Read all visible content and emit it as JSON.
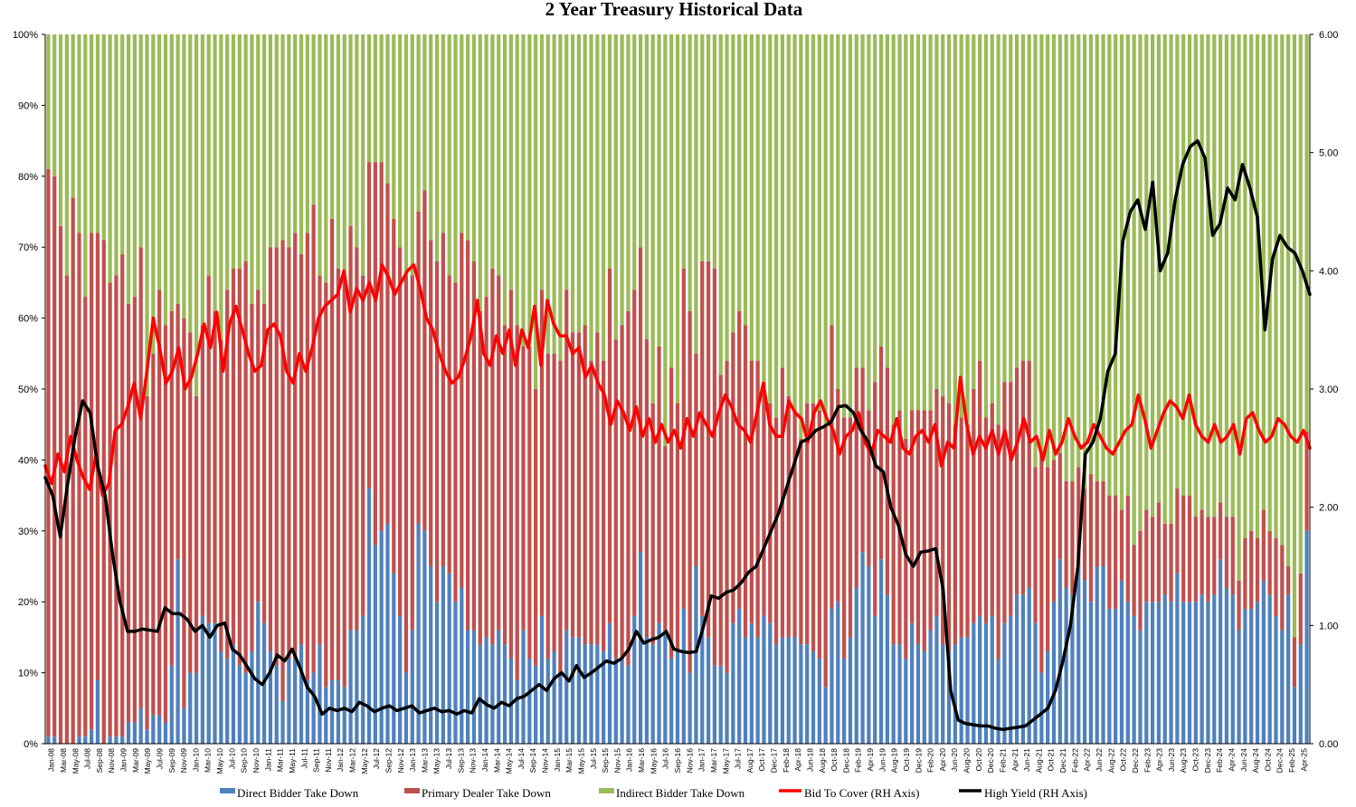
{
  "chart_data": {
    "type": "bar",
    "title": "2 Year Treasury  Historical Data",
    "y_left": {
      "min": 0,
      "max": 100,
      "ticks": [
        "0%",
        "10%",
        "20%",
        "30%",
        "40%",
        "50%",
        "60%",
        "70%",
        "80%",
        "90%",
        "100%"
      ]
    },
    "y_right": {
      "min": 0,
      "max": 6,
      "ticks": [
        "0.00",
        "1.00",
        "2.00",
        "3.00",
        "4.00",
        "5.00",
        "6.00"
      ]
    },
    "x_tick_labels": [
      "Jan-08",
      "Mar-08",
      "May-08",
      "Jul-08",
      "Sep-08",
      "Nov-08",
      "Jan-09",
      "Mar-09",
      "May-09",
      "Jul-09",
      "Sep-09",
      "Nov-09",
      "Jan-10",
      "Mar-10",
      "May-10",
      "Jul-10",
      "Sep-10",
      "Nov-10",
      "Jan-11",
      "Mar-11",
      "May-11",
      "Jul-11",
      "Sep-11",
      "Nov-11",
      "Jan-12",
      "Mar-12",
      "May-12",
      "Jul-12",
      "Sep-12",
      "Nov-12",
      "Jan-13",
      "Mar-13",
      "May-13",
      "Jul-13",
      "Sep-13",
      "Nov-13",
      "Jan-14",
      "Mar-14",
      "May-14",
      "Jul-14",
      "Sep-14",
      "Nov-14",
      "Jan-15",
      "Mar-15",
      "May-15",
      "Jul-15",
      "Sep-15",
      "Nov-15",
      "Jan-16",
      "Mar-16",
      "May-16",
      "Jul-16",
      "Sep-16",
      "Nov-16",
      "Jan-17",
      "Mar-17",
      "May-17",
      "Jul-17",
      "Aug-17",
      "Oct-17",
      "Dec-17",
      "Feb-18",
      "Apr-18",
      "Jun-18",
      "Aug-18",
      "Oct-18",
      "Dec-18",
      "Feb-19",
      "Apr-19",
      "Jun-19",
      "Aug-19",
      "Oct-19",
      "Dec-19",
      "Feb-20",
      "Apr-20",
      "Jun-20",
      "Aug-20",
      "Oct-20",
      "Dec-20",
      "Feb-21",
      "Apr-21",
      "Jun-21",
      "Aug-21",
      "Oct-21",
      "Dec-21",
      "Feb-22",
      "Apr-22",
      "Jun-22",
      "Aug-22",
      "Oct-22",
      "Dec-22",
      "Feb-23",
      "Apr-23",
      "Jun-23",
      "Aug-23",
      "Oct-23",
      "Dec-23",
      "Feb-24",
      "Apr-24",
      "Jun-24",
      "Aug-24",
      "Oct-24",
      "Dec-24",
      "Feb-25",
      "Apr-25"
    ],
    "series": [
      {
        "name": "Direct Bidder Take Down",
        "kind": "stacked-bar",
        "color": "#4f81bd",
        "values": [
          1,
          1,
          0,
          0,
          0,
          1,
          1,
          2,
          9,
          0,
          1,
          1,
          1,
          3,
          3,
          5,
          2,
          4,
          4,
          3,
          11,
          26,
          5,
          10,
          10,
          18,
          17,
          17,
          13,
          12,
          14,
          11,
          10,
          13,
          20,
          17,
          13,
          11,
          6,
          12,
          12,
          14,
          9,
          10,
          14,
          8,
          9,
          9,
          8,
          16,
          16,
          18,
          36,
          28,
          30,
          31,
          24,
          18,
          10,
          16,
          31,
          30,
          25,
          20,
          25,
          24,
          20,
          22,
          16,
          16,
          14,
          15,
          14,
          16,
          14,
          12,
          9,
          16,
          12,
          11,
          18,
          12,
          13,
          10,
          16,
          15,
          15,
          14,
          14,
          14,
          13,
          17,
          12,
          12,
          11,
          18,
          27,
          15,
          14,
          17,
          16,
          12,
          13,
          19,
          10,
          25,
          18,
          15,
          11,
          11,
          10,
          17,
          19,
          15,
          17,
          15,
          18,
          17,
          14,
          15,
          15,
          15,
          14,
          14,
          13,
          12,
          8,
          19,
          20,
          12,
          15,
          22,
          27,
          25,
          18,
          26,
          21,
          14,
          14,
          12,
          17,
          14,
          13,
          16,
          18,
          14,
          13,
          14,
          15,
          15,
          17,
          18,
          17,
          18,
          12,
          17,
          18,
          21,
          21,
          22,
          17,
          10,
          13,
          20,
          26,
          22,
          21,
          25,
          23,
          20,
          25,
          25,
          19,
          19,
          23,
          20,
          18,
          16,
          20,
          20,
          20,
          21,
          20,
          24,
          20,
          20,
          20,
          21,
          20,
          21,
          26,
          22,
          21,
          16,
          19,
          19,
          20,
          23,
          21,
          18,
          16,
          21,
          8,
          14,
          30
        ]
      },
      {
        "name": "Primary Dealer Take Down",
        "kind": "stacked-bar",
        "color": "#c0504d",
        "values": [
          80,
          79,
          73,
          66,
          77,
          71,
          62,
          70,
          63,
          71,
          64,
          65,
          68,
          59,
          60,
          65,
          47,
          51,
          60,
          56,
          50,
          36,
          55,
          48,
          39,
          41,
          49,
          44,
          44,
          52,
          53,
          56,
          58,
          49,
          44,
          45,
          57,
          59,
          65,
          58,
          60,
          55,
          63,
          66,
          52,
          57,
          65,
          58,
          58,
          57,
          54,
          48,
          46,
          54,
          52,
          48,
          50,
          52,
          56,
          50,
          44,
          48,
          46,
          48,
          47,
          42,
          45,
          50,
          55,
          52,
          47,
          48,
          53,
          50,
          45,
          52,
          50,
          40,
          44,
          39,
          46,
          43,
          42,
          44,
          48,
          43,
          43,
          45,
          40,
          44,
          41,
          50,
          45,
          47,
          50,
          46,
          43,
          42,
          34,
          39,
          26,
          41,
          35,
          48,
          51,
          30,
          50,
          53,
          56,
          41,
          44,
          41,
          42,
          44,
          37,
          39,
          33,
          31,
          32,
          38,
          34,
          32,
          29,
          34,
          35,
          35,
          37,
          40,
          30,
          34,
          31,
          31,
          26,
          22,
          33,
          30,
          32,
          31,
          33,
          31,
          30,
          33,
          34,
          31,
          32,
          35,
          35,
          31,
          31,
          30,
          33,
          36,
          29,
          30,
          33,
          34,
          33,
          32,
          33,
          32,
          22,
          31,
          26,
          20,
          15,
          15,
          16,
          14,
          13,
          18,
          12,
          12,
          16,
          16,
          10,
          15,
          10,
          14,
          13,
          12,
          14,
          10,
          11,
          12,
          15,
          15,
          12,
          12,
          12,
          11,
          8,
          10,
          11,
          7,
          10,
          11,
          9,
          10,
          9,
          11,
          12,
          4,
          7,
          10,
          14
        ]
      },
      {
        "name": "Indirect Bidder Take Down",
        "kind": "stacked-bar",
        "color": "#9bbb59",
        "values": [
          19,
          20,
          27,
          34,
          23,
          28,
          37,
          28,
          28,
          29,
          35,
          34,
          31,
          38,
          37,
          30,
          51,
          45,
          36,
          41,
          39,
          38,
          40,
          42,
          51,
          41,
          34,
          39,
          43,
          36,
          33,
          33,
          32,
          38,
          36,
          38,
          30,
          30,
          29,
          30,
          28,
          31,
          28,
          24,
          34,
          35,
          26,
          33,
          34,
          27,
          30,
          34,
          18,
          18,
          18,
          21,
          26,
          30,
          34,
          34,
          25,
          22,
          29,
          32,
          28,
          34,
          35,
          28,
          29,
          32,
          39,
          37,
          33,
          34,
          41,
          36,
          41,
          44,
          44,
          50,
          36,
          45,
          45,
          46,
          36,
          42,
          42,
          41,
          46,
          42,
          46,
          33,
          43,
          41,
          39,
          36,
          30,
          43,
          52,
          44,
          58,
          47,
          52,
          33,
          39,
          45,
          32,
          32,
          33,
          48,
          46,
          42,
          39,
          41,
          46,
          46,
          49,
          52,
          54,
          47,
          51,
          53,
          57,
          52,
          52,
          53,
          55,
          41,
          50,
          54,
          54,
          47,
          47,
          53,
          49,
          44,
          47,
          55,
          53,
          57,
          53,
          53,
          53,
          53,
          50,
          51,
          52,
          55,
          54,
          55,
          50,
          46,
          54,
          52,
          55,
          49,
          49,
          47,
          46,
          46,
          61,
          59,
          61,
          60,
          59,
          63,
          63,
          61,
          64,
          62,
          63,
          63,
          65,
          65,
          67,
          65,
          72,
          70,
          67,
          68,
          66,
          69,
          69,
          64,
          65,
          65,
          68,
          67,
          68,
          68,
          66,
          68,
          68,
          77,
          71,
          70,
          71,
          67,
          70,
          71,
          72,
          75,
          85,
          76,
          56
        ]
      },
      {
        "name": "Bid To Cover (RH Axis)",
        "kind": "line",
        "axis": "right",
        "color": "#ff0000",
        "values": [
          2.35,
          2.2,
          2.45,
          2.3,
          2.6,
          2.4,
          2.25,
          2.15,
          2.45,
          2.1,
          2.2,
          2.65,
          2.7,
          2.85,
          3.05,
          2.75,
          3.15,
          3.6,
          3.35,
          3.05,
          3.15,
          3.35,
          3.0,
          3.1,
          3.3,
          3.55,
          3.35,
          3.65,
          3.15,
          3.55,
          3.7,
          3.5,
          3.3,
          3.15,
          3.2,
          3.5,
          3.55,
          3.45,
          3.15,
          3.05,
          3.3,
          3.15,
          3.35,
          3.6,
          3.7,
          3.75,
          3.8,
          4.0,
          3.65,
          3.85,
          3.75,
          3.9,
          3.75,
          4.05,
          3.95,
          3.8,
          3.9,
          4.0,
          4.05,
          3.85,
          3.6,
          3.5,
          3.3,
          3.15,
          3.05,
          3.1,
          3.25,
          3.45,
          3.75,
          3.3,
          3.2,
          3.45,
          3.3,
          3.5,
          3.2,
          3.5,
          3.35,
          3.7,
          3.2,
          3.75,
          3.55,
          3.45,
          3.45,
          3.3,
          3.35,
          3.1,
          3.2,
          3.05,
          2.95,
          2.7,
          2.9,
          2.8,
          2.65,
          2.85,
          2.6,
          2.75,
          2.55,
          2.7,
          2.55,
          2.65,
          2.5,
          2.75,
          2.6,
          2.8,
          2.7,
          2.6,
          2.8,
          2.95,
          2.85,
          2.7,
          2.65,
          2.55,
          2.8,
          3.05,
          2.7,
          2.6,
          2.6,
          2.9,
          2.8,
          2.75,
          2.55,
          2.8,
          2.9,
          2.75,
          2.65,
          2.45,
          2.6,
          2.65,
          2.8,
          2.55,
          2.45,
          2.65,
          2.6,
          2.55,
          2.75,
          2.5,
          2.45,
          2.6,
          2.65,
          2.55,
          2.7,
          2.35,
          2.55,
          2.5,
          3.1,
          2.7,
          2.45,
          2.6,
          2.5,
          2.65,
          2.45,
          2.65,
          2.4,
          2.55,
          2.75,
          2.55,
          2.6,
          2.4,
          2.65,
          2.45,
          2.55,
          2.75,
          2.6,
          2.5,
          2.55,
          2.7,
          2.6,
          2.5,
          2.45,
          2.55,
          2.65,
          2.7,
          2.95,
          2.75,
          2.5,
          2.65,
          2.8,
          2.9,
          2.85,
          2.75,
          2.95,
          2.7,
          2.6,
          2.55,
          2.7,
          2.55,
          2.6,
          2.7,
          2.45,
          2.75,
          2.8,
          2.65,
          2.55,
          2.6,
          2.75,
          2.7,
          2.6,
          2.55,
          2.65,
          2.5
        ]
      },
      {
        "name": "High Yield (RH Axis)",
        "kind": "line",
        "axis": "right",
        "color": "#000000",
        "values": [
          2.25,
          2.1,
          1.75,
          2.2,
          2.6,
          2.9,
          2.8,
          2.35,
          2.1,
          1.6,
          1.2,
          0.95,
          0.95,
          0.97,
          0.96,
          0.95,
          1.15,
          1.1,
          1.1,
          1.05,
          0.95,
          1.0,
          0.9,
          1.0,
          1.02,
          0.8,
          0.75,
          0.65,
          0.55,
          0.5,
          0.6,
          0.75,
          0.7,
          0.8,
          0.65,
          0.48,
          0.4,
          0.25,
          0.3,
          0.28,
          0.3,
          0.27,
          0.35,
          0.32,
          0.27,
          0.3,
          0.32,
          0.28,
          0.3,
          0.32,
          0.26,
          0.28,
          0.3,
          0.27,
          0.28,
          0.25,
          0.28,
          0.26,
          0.38,
          0.33,
          0.3,
          0.35,
          0.32,
          0.38,
          0.4,
          0.45,
          0.5,
          0.45,
          0.55,
          0.6,
          0.53,
          0.66,
          0.56,
          0.6,
          0.65,
          0.7,
          0.68,
          0.72,
          0.8,
          0.95,
          0.85,
          0.88,
          0.9,
          0.95,
          0.8,
          0.78,
          0.77,
          0.78,
          1.0,
          1.25,
          1.23,
          1.28,
          1.3,
          1.36,
          1.45,
          1.5,
          1.65,
          1.8,
          1.95,
          2.15,
          2.35,
          2.55,
          2.58,
          2.65,
          2.68,
          2.72,
          2.85,
          2.86,
          2.8,
          2.65,
          2.55,
          2.35,
          2.3,
          2.0,
          1.85,
          1.6,
          1.5,
          1.62,
          1.63,
          1.65,
          1.3,
          0.45,
          0.2,
          0.17,
          0.16,
          0.15,
          0.15,
          0.13,
          0.12,
          0.13,
          0.14,
          0.15,
          0.2,
          0.25,
          0.3,
          0.45,
          0.7,
          1.0,
          1.5,
          2.45,
          2.55,
          2.75,
          3.15,
          3.3,
          4.25,
          4.5,
          4.6,
          4.35,
          4.75,
          4.0,
          4.15,
          4.6,
          4.9,
          5.05,
          5.1,
          4.95,
          4.3,
          4.4,
          4.7,
          4.6,
          4.9,
          4.7,
          4.45,
          3.5,
          4.1,
          4.3,
          4.2,
          4.15,
          4.0,
          3.8
        ]
      }
    ],
    "legend_position": "bottom"
  }
}
